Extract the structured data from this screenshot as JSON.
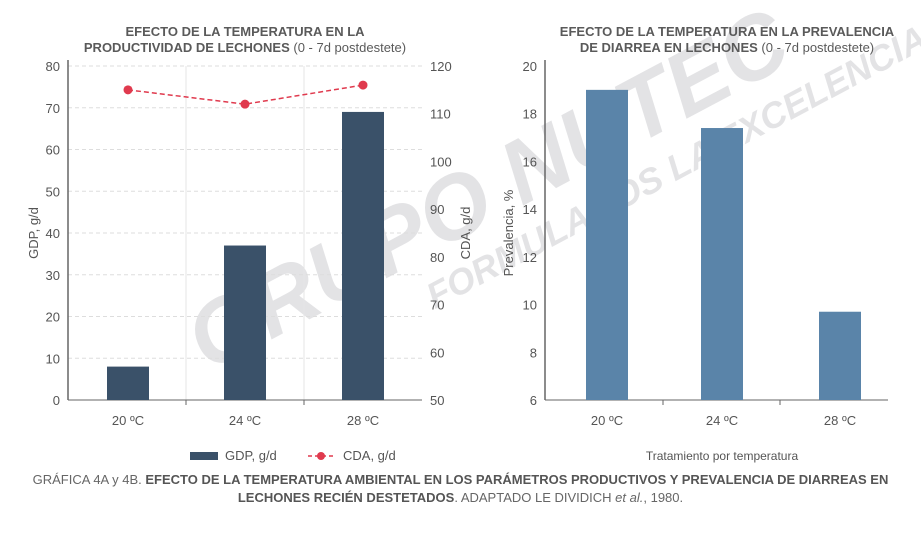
{
  "watermark": {
    "brand": "GRUPO NUTEC",
    "tagline": "FORMULAMOS LA EXCELENCIA"
  },
  "chart_data": [
    {
      "type": "bar",
      "title_bold_1": "EFECTO DE LA TEMPERATURA EN LA",
      "title_bold_2": "PRODUCTIVIDAD DE LECHONES",
      "title_normal": " (0 - 7d postdestete)",
      "categories": [
        "20 ºC",
        "24 ºC",
        "28 ºC"
      ],
      "series": [
        {
          "name": "GDP, g/d",
          "type": "bar",
          "axis": "left",
          "color": "#3a5169",
          "values": [
            8,
            37,
            69
          ]
        },
        {
          "name": "CDA, g/d",
          "type": "line",
          "axis": "right",
          "color": "#e03a4e",
          "values": [
            115,
            112,
            116
          ]
        }
      ],
      "ylabel": "GDP, g/d",
      "ylim": [
        0,
        80
      ],
      "yticks": [
        0,
        10,
        20,
        30,
        40,
        50,
        60,
        70,
        80
      ],
      "y2label": "CDA, g/d",
      "y2lim": [
        50,
        120
      ],
      "y2ticks": [
        50,
        60,
        70,
        80,
        90,
        100,
        110,
        120
      ],
      "legend": "bottom",
      "grid": true
    },
    {
      "type": "bar",
      "title_bold_1": "EFECTO DE LA TEMPERATURA EN LA PREVALENCIA",
      "title_bold_2": "DE DIARREA EN LECHONES",
      "title_normal": " (0 - 7d postdestete)",
      "categories": [
        "20 ºC",
        "24 ºC",
        "28 ºC"
      ],
      "series": [
        {
          "name": "Prevalencia",
          "color": "#5a84a9",
          "values": [
            19,
            17.4,
            9.7
          ]
        }
      ],
      "ylabel": "Prevalencia, %",
      "ylim": [
        6,
        20
      ],
      "yticks": [
        6,
        8,
        10,
        12,
        14,
        16,
        18,
        20
      ],
      "xlabel": "Tratamiento por temperatura",
      "grid": false
    }
  ],
  "caption": {
    "prefix": "GRÁFICA 4A y 4B. ",
    "bold": "EFECTO DE LA TEMPERATURA AMBIENTAL EN LOS PARÁMETROS PRODUCTIVOS Y PREVALENCIA DE DIARREAS EN LECHONES RECIÉN DESTETADOS",
    "suffix": ". ADAPTADO LE DIVIDICH ",
    "italic": "et al.",
    "end": ", 1980."
  }
}
